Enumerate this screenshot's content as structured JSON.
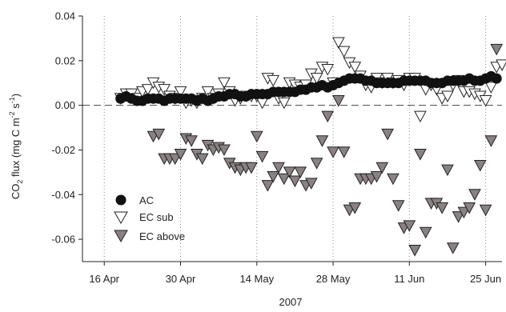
{
  "chart_data": {
    "type": "scatter",
    "xlabel": "2007",
    "ylabel": {
      "prefix": "CO",
      "sub": "2",
      "middle": " flux (mg C m",
      "sup1": "-2",
      "mid2": " s",
      "sup2": "-1",
      "suffix": ")"
    },
    "x_ticks": [
      {
        "day": 0,
        "label": "16 Apr"
      },
      {
        "day": 14,
        "label": "30 Apr"
      },
      {
        "day": 28,
        "label": "14 May"
      },
      {
        "day": 42,
        "label": "28 May"
      },
      {
        "day": 56,
        "label": "11 Jun"
      },
      {
        "day": 70,
        "label": "25 Jun"
      }
    ],
    "xlim_days": [
      -4,
      73
    ],
    "ylim": [
      -0.07,
      0.04
    ],
    "y_ticks": [
      {
        "value": 0.04,
        "label": "0.04"
      },
      {
        "value": 0.02,
        "label": "0.02"
      },
      {
        "value": 0.0,
        "label": "0.00"
      },
      {
        "value": -0.02,
        "label": "-0.02"
      },
      {
        "value": -0.04,
        "label": "-0.04"
      },
      {
        "value": -0.06,
        "label": "-0.06"
      }
    ],
    "zero_line": "dashed",
    "vertical_guides": "dotted at each x tick",
    "legend_position": "lower-left",
    "series": [
      {
        "name": "AC",
        "marker": "filled-circle",
        "color": "#111111",
        "points": [
          [
            3.0,
            0.003
          ],
          [
            4.0,
            0.004
          ],
          [
            5.0,
            0.003
          ],
          [
            6.0,
            0.002
          ],
          [
            7.0,
            0.002
          ],
          [
            8.0,
            0.003
          ],
          [
            9.0,
            0.003
          ],
          [
            10.0,
            0.003
          ],
          [
            11.0,
            0.002
          ],
          [
            12.0,
            0.003
          ],
          [
            13.0,
            0.003
          ],
          [
            14.0,
            0.003
          ],
          [
            15.0,
            0.003
          ],
          [
            16.0,
            0.003
          ],
          [
            17.0,
            0.002
          ],
          [
            18.0,
            0.003
          ],
          [
            19.0,
            0.002
          ],
          [
            20.0,
            0.003
          ],
          [
            21.0,
            0.004
          ],
          [
            22.0,
            0.004
          ],
          [
            23.0,
            0.005
          ],
          [
            24.0,
            0.005
          ],
          [
            25.0,
            0.004
          ],
          [
            26.0,
            0.004
          ],
          [
            27.0,
            0.005
          ],
          [
            28.0,
            0.005
          ],
          [
            29.0,
            0.005
          ],
          [
            30.0,
            0.005
          ],
          [
            31.0,
            0.006
          ],
          [
            32.0,
            0.006
          ],
          [
            33.0,
            0.006
          ],
          [
            34.0,
            0.006
          ],
          [
            35.0,
            0.006
          ],
          [
            36.0,
            0.007
          ],
          [
            37.0,
            0.007
          ],
          [
            38.0,
            0.008
          ],
          [
            39.0,
            0.008
          ],
          [
            40.0,
            0.009
          ],
          [
            41.0,
            0.008
          ],
          [
            42.0,
            0.009
          ],
          [
            43.0,
            0.01
          ],
          [
            44.0,
            0.011
          ],
          [
            45.0,
            0.012
          ],
          [
            46.0,
            0.012
          ],
          [
            47.0,
            0.012
          ],
          [
            48.0,
            0.011
          ],
          [
            49.0,
            0.011
          ],
          [
            50.0,
            0.01
          ],
          [
            51.0,
            0.01
          ],
          [
            52.0,
            0.01
          ],
          [
            53.0,
            0.01
          ],
          [
            54.0,
            0.01
          ],
          [
            55.0,
            0.011
          ],
          [
            56.0,
            0.011
          ],
          [
            57.0,
            0.011
          ],
          [
            58.0,
            0.011
          ],
          [
            59.0,
            0.011
          ],
          [
            60.0,
            0.01
          ],
          [
            61.0,
            0.01
          ],
          [
            62.0,
            0.01
          ],
          [
            63.0,
            0.011
          ],
          [
            64.0,
            0.011
          ],
          [
            65.0,
            0.011
          ],
          [
            66.0,
            0.011
          ],
          [
            67.0,
            0.012
          ],
          [
            68.0,
            0.011
          ],
          [
            69.0,
            0.011
          ],
          [
            70.0,
            0.012
          ],
          [
            71.0,
            0.013
          ],
          [
            72.0,
            0.012
          ]
        ]
      },
      {
        "name": "EC sub",
        "marker": "open-down-triangle",
        "color": "#ffffff",
        "points": [
          [
            3.0,
            0.003
          ],
          [
            4.0,
            0.005
          ],
          [
            5.0,
            0.005
          ],
          [
            6.0,
            0.003
          ],
          [
            7.0,
            0.006
          ],
          [
            8.0,
            0.007
          ],
          [
            9.0,
            0.01
          ],
          [
            10.0,
            0.008
          ],
          [
            11.0,
            0.007
          ],
          [
            12.0,
            0.004
          ],
          [
            13.0,
            0.003
          ],
          [
            14.0,
            0.006
          ],
          [
            15.0,
            0.001
          ],
          [
            16.0,
            0.002
          ],
          [
            17.0,
            0.001
          ],
          [
            18.0,
            0.003
          ],
          [
            19.0,
            0.006
          ],
          [
            20.0,
            0.003
          ],
          [
            21.0,
            0.005
          ],
          [
            22.0,
            0.01
          ],
          [
            23.0,
            0.006
          ],
          [
            24.0,
            0.002
          ],
          [
            25.0,
            0.003
          ],
          [
            26.0,
            0.004
          ],
          [
            27.0,
            0.004
          ],
          [
            28.0,
            0.004
          ],
          [
            29.0,
            0.001
          ],
          [
            30.0,
            0.012
          ],
          [
            31.0,
            0.011
          ],
          [
            32.0,
            0.003
          ],
          [
            33.0,
            0.001
          ],
          [
            34.0,
            0.01
          ],
          [
            35.0,
            0.009
          ],
          [
            36.0,
            0.008
          ],
          [
            37.0,
            0.009
          ],
          [
            38.0,
            0.014
          ],
          [
            39.0,
            0.012
          ],
          [
            40.0,
            0.017
          ],
          [
            41.0,
            0.016
          ],
          [
            42.0,
            0.01
          ],
          [
            43.0,
            0.028
          ],
          [
            44.0,
            0.024
          ],
          [
            45.0,
            0.019
          ],
          [
            46.0,
            0.017
          ],
          [
            47.0,
            0.013
          ],
          [
            48.0,
            0.009
          ],
          [
            49.0,
            0.008
          ],
          [
            50.0,
            0.012
          ],
          [
            51.0,
            0.01
          ],
          [
            52.0,
            0.012
          ],
          [
            53.0,
            0.01
          ],
          [
            54.0,
            0.011
          ],
          [
            55.0,
            0.009
          ],
          [
            56.0,
            0.012
          ],
          [
            57.0,
            0.012
          ],
          [
            58.0,
            -0.005
          ],
          [
            59.0,
            0.007
          ],
          [
            60.0,
            0.009
          ],
          [
            61.0,
            0.007
          ],
          [
            62.0,
            0.003
          ],
          [
            63.0,
            0.004
          ],
          [
            64.0,
            0.009
          ],
          [
            65.0,
            0.011
          ],
          [
            66.0,
            0.006
          ],
          [
            67.0,
            0.006
          ],
          [
            68.0,
            0.005
          ],
          [
            69.0,
            0.004
          ],
          [
            70.0,
            0.002
          ],
          [
            71.0,
            0.008
          ],
          [
            72.0,
            0.017
          ],
          [
            73.0,
            0.018
          ]
        ]
      },
      {
        "name": "EC above",
        "marker": "filled-down-triangle",
        "color": "#8a8282",
        "points": [
          [
            9.0,
            -0.014
          ],
          [
            10.0,
            -0.013
          ],
          [
            11.0,
            -0.024
          ],
          [
            12.0,
            -0.024
          ],
          [
            13.0,
            -0.024
          ],
          [
            14.0,
            -0.022
          ],
          [
            15.0,
            -0.015
          ],
          [
            16.0,
            -0.016
          ],
          [
            17.0,
            -0.022
          ],
          [
            18.0,
            -0.024
          ],
          [
            19.0,
            -0.018
          ],
          [
            20.0,
            -0.02
          ],
          [
            21.0,
            -0.019
          ],
          [
            22.0,
            -0.02
          ],
          [
            23.0,
            -0.026
          ],
          [
            24.0,
            -0.028
          ],
          [
            25.0,
            -0.029
          ],
          [
            26.0,
            -0.028
          ],
          [
            27.0,
            -0.028
          ],
          [
            28.0,
            -0.014
          ],
          [
            29.0,
            -0.023
          ],
          [
            30.0,
            -0.036
          ],
          [
            31.0,
            -0.032
          ],
          [
            32.0,
            -0.028
          ],
          [
            33.0,
            -0.033
          ],
          [
            34.0,
            -0.03
          ],
          [
            35.0,
            -0.034
          ],
          [
            36.0,
            -0.03
          ],
          [
            37.0,
            -0.036
          ],
          [
            38.0,
            -0.035
          ],
          [
            39.0,
            -0.026
          ],
          [
            40.0,
            -0.016
          ],
          [
            41.0,
            -0.005
          ],
          [
            42.0,
            -0.021
          ],
          [
            43.0,
            0.002
          ],
          [
            44.0,
            -0.021
          ],
          [
            45.0,
            -0.047
          ],
          [
            46.0,
            -0.046
          ],
          [
            47.0,
            -0.033
          ],
          [
            48.0,
            -0.033
          ],
          [
            49.0,
            -0.033
          ],
          [
            50.0,
            -0.032
          ],
          [
            51.0,
            -0.028
          ],
          [
            52.0,
            -0.013
          ],
          [
            53.0,
            -0.033
          ],
          [
            54.0,
            -0.045
          ],
          [
            55.0,
            -0.055
          ],
          [
            56.0,
            -0.054
          ],
          [
            57.0,
            -0.065
          ],
          [
            58.0,
            -0.022
          ],
          [
            59.0,
            -0.057
          ],
          [
            60.0,
            -0.044
          ],
          [
            61.0,
            -0.044
          ],
          [
            62.0,
            -0.046
          ],
          [
            63.0,
            -0.029
          ],
          [
            64.0,
            -0.064
          ],
          [
            65.0,
            -0.05
          ],
          [
            66.0,
            -0.048
          ],
          [
            67.0,
            -0.046
          ],
          [
            68.0,
            -0.04
          ],
          [
            69.0,
            -0.027
          ],
          [
            70.0,
            -0.047
          ],
          [
            71.0,
            -0.016
          ],
          [
            72.0,
            0.025
          ]
        ]
      }
    ]
  }
}
